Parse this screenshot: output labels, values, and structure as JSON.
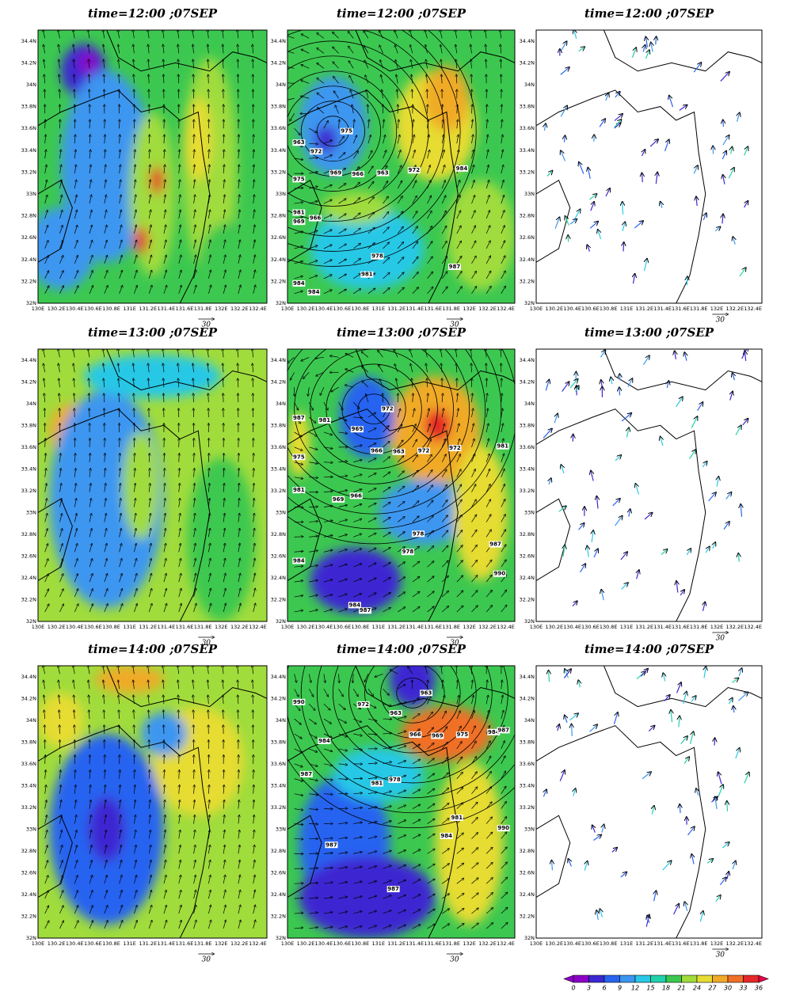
{
  "panels": [
    {
      "title": "time=12:00 ;07SEP",
      "vector_ref": 30
    },
    {
      "title": "time=12:00 ;07SEP",
      "vector_ref": 30,
      "isobar_labels": [
        975,
        972,
        969,
        966,
        963,
        963,
        966,
        969,
        972,
        975,
        978,
        981,
        981,
        984,
        984,
        984,
        987
      ]
    },
    {
      "title": "time=12:00 ;07SEP",
      "vector_ref": 30
    },
    {
      "title": "time=13:00 ;07SEP",
      "vector_ref": 30
    },
    {
      "title": "time=13:00 ;07SEP",
      "vector_ref": 30,
      "isobar_labels": [
        972,
        969,
        966,
        963,
        981,
        972,
        966,
        969,
        972,
        975,
        978,
        978,
        981,
        981,
        984,
        984,
        987,
        987,
        990,
        987
      ]
    },
    {
      "title": "time=13:00 ;07SEP",
      "vector_ref": 30
    },
    {
      "title": "time=14:00 ;07SEP",
      "vector_ref": 30
    },
    {
      "title": "time=14:00 ;07SEP",
      "vector_ref": 30,
      "isobar_labels": [
        963,
        963,
        966,
        969,
        972,
        975,
        978,
        981,
        984,
        984,
        981,
        984,
        987,
        987,
        987,
        987,
        990,
        990
      ]
    },
    {
      "title": "time=14:00 ;07SEP",
      "vector_ref": 30
    }
  ],
  "lat_ticks": [
    "32N",
    "32.2N",
    "32.4N",
    "32.6N",
    "32.8N",
    "33N",
    "33.2N",
    "33.4N",
    "33.6N",
    "33.8N",
    "34N",
    "34.2N",
    "34.4N"
  ],
  "lon_ticks": [
    "130E",
    "130.2E",
    "130.4E",
    "130.6E",
    "130.8E",
    "131E",
    "131.2E",
    "131.4E",
    "131.6E",
    "131.8E",
    "132E",
    "132.2E",
    "132.4E"
  ],
  "colorbar": {
    "ticks": [
      0,
      3,
      6,
      9,
      12,
      15,
      18,
      21,
      24,
      27,
      30,
      33,
      36
    ],
    "colors": [
      "#8c00c8",
      "#3c28d2",
      "#2864f0",
      "#3c96f0",
      "#28c8e6",
      "#20d2aa",
      "#3cc850",
      "#a0dc3c",
      "#e6dc32",
      "#f0aa28",
      "#f07028",
      "#e62828",
      "#e6004c"
    ]
  }
}
